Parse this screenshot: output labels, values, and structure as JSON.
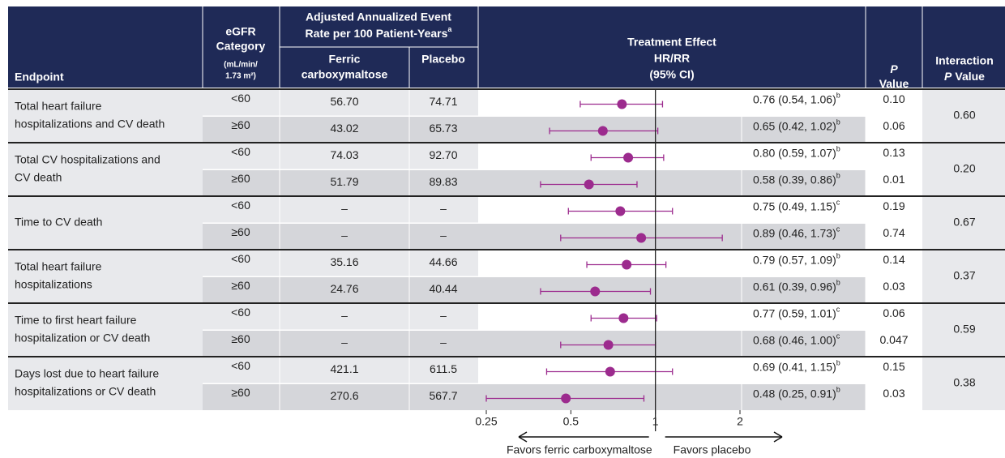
{
  "chart_data": {
    "type": "forest",
    "header": {
      "endpoint": "Endpoint",
      "egfr": [
        "eGFR",
        "Category"
      ],
      "egfr_unit": [
        "(mL/min/",
        "1.73 m²)"
      ],
      "rate": [
        "Adjusted Annualized Event",
        "Rate per 100 Patient-Years"
      ],
      "rate_note": "a",
      "fcm": [
        "Ferric",
        "carboxymaltose"
      ],
      "placebo": "Placebo",
      "effect": [
        "Treatment Effect",
        "HR/RR",
        "(95% CI)"
      ],
      "p": {
        "italic": "P",
        "text": "Value"
      },
      "interaction": {
        "text": "Interaction",
        "italic": "P",
        "text2": "Value"
      }
    },
    "groups": [
      {
        "endpoint": [
          "Total heart failure",
          "hospitalizations and CV death"
        ],
        "interaction_p": "0.60",
        "rows": [
          {
            "egfr": "<60",
            "fcm": "56.70",
            "placebo": "74.71",
            "hr": 0.76,
            "lo": 0.54,
            "hi": 1.06,
            "ci_label": "0.76 (0.54, 1.06)",
            "note": "b",
            "p": "0.10"
          },
          {
            "egfr": "≥60",
            "fcm": "43.02",
            "placebo": "65.73",
            "hr": 0.65,
            "lo": 0.42,
            "hi": 1.02,
            "ci_label": "0.65 (0.42, 1.02)",
            "note": "b",
            "p": "0.06"
          }
        ]
      },
      {
        "endpoint": [
          "Total CV hospitalizations and",
          "CV death"
        ],
        "interaction_p": "0.20",
        "rows": [
          {
            "egfr": "<60",
            "fcm": "74.03",
            "placebo": "92.70",
            "hr": 0.8,
            "lo": 0.59,
            "hi": 1.07,
            "ci_label": "0.80 (0.59, 1.07)",
            "note": "b",
            "p": "0.13"
          },
          {
            "egfr": "≥60",
            "fcm": "51.79",
            "placebo": "89.83",
            "hr": 0.58,
            "lo": 0.39,
            "hi": 0.86,
            "ci_label": "0.58 (0.39, 0.86)",
            "note": "b",
            "p": "0.01"
          }
        ]
      },
      {
        "endpoint": [
          "Time to CV death"
        ],
        "interaction_p": "0.67",
        "rows": [
          {
            "egfr": "<60",
            "fcm": "–",
            "placebo": "–",
            "hr": 0.75,
            "lo": 0.49,
            "hi": 1.15,
            "ci_label": "0.75 (0.49, 1.15)",
            "note": "c",
            "p": "0.19"
          },
          {
            "egfr": "≥60",
            "fcm": "–",
            "placebo": "–",
            "hr": 0.89,
            "lo": 0.46,
            "hi": 1.73,
            "ci_label": "0.89 (0.46, 1.73)",
            "note": "c",
            "p": "0.74"
          }
        ]
      },
      {
        "endpoint": [
          "Total heart failure",
          "hospitalizations"
        ],
        "interaction_p": "0.37",
        "rows": [
          {
            "egfr": "<60",
            "fcm": "35.16",
            "placebo": "44.66",
            "hr": 0.79,
            "lo": 0.57,
            "hi": 1.09,
            "ci_label": "0.79 (0.57, 1.09)",
            "note": "b",
            "p": "0.14"
          },
          {
            "egfr": "≥60",
            "fcm": "24.76",
            "placebo": "40.44",
            "hr": 0.61,
            "lo": 0.39,
            "hi": 0.96,
            "ci_label": "0.61 (0.39, 0.96)",
            "note": "b",
            "p": "0.03"
          }
        ]
      },
      {
        "endpoint": [
          "Time to first heart failure",
          "hospitalization or CV death"
        ],
        "interaction_p": "0.59",
        "rows": [
          {
            "egfr": "<60",
            "fcm": "–",
            "placebo": "–",
            "hr": 0.77,
            "lo": 0.59,
            "hi": 1.01,
            "ci_label": "0.77 (0.59, 1.01)",
            "note": "c",
            "p": "0.06"
          },
          {
            "egfr": "≥60",
            "fcm": "–",
            "placebo": "–",
            "hr": 0.68,
            "lo": 0.46,
            "hi": 1.0,
            "ci_label": "0.68 (0.46, 1.00)",
            "note": "c",
            "p": "0.047"
          }
        ]
      },
      {
        "endpoint": [
          "Days lost due to heart failure",
          "hospitalizations or CV death"
        ],
        "interaction_p": "0.38",
        "rows": [
          {
            "egfr": "<60",
            "fcm": "421.1",
            "placebo": "611.5",
            "hr": 0.69,
            "lo": 0.41,
            "hi": 1.15,
            "ci_label": "0.69 (0.41, 1.15)",
            "note": "b",
            "p": "0.15"
          },
          {
            "egfr": "≥60",
            "fcm": "270.6",
            "placebo": "567.7",
            "hr": 0.48,
            "lo": 0.25,
            "hi": 0.91,
            "ci_label": "0.48 (0.25, 0.91)",
            "note": "b",
            "p": "0.03"
          }
        ]
      }
    ],
    "xlim": [
      0.25,
      2
    ],
    "xticks": [
      0.25,
      0.5,
      1,
      2
    ],
    "log_x": true,
    "reference": 1,
    "color": "#9c2b8e",
    "favors_left": "Favors ferric carboxymaltose",
    "favors_right": "Favors placebo"
  }
}
